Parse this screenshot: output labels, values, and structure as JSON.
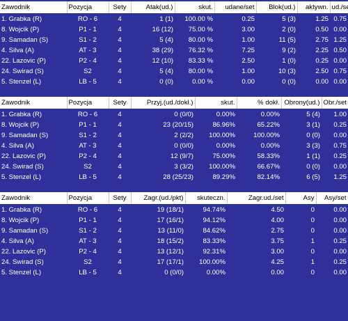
{
  "attack": {
    "headers": [
      "Zawodnik",
      "Pozycja",
      "Sety",
      "Atak(ud.)",
      "skut.",
      "udane/set",
      "Blok(ud.)",
      "aktywn.",
      "ud./set"
    ],
    "rows": [
      [
        "1. Grabka (R)",
        "RO - 6",
        "4",
        "1 (1)",
        "100.00 %",
        "0.25",
        "5 (3)",
        "1.25",
        "0.75"
      ],
      [
        "8. Wojcik (P)",
        "P1 - 1",
        "4",
        "16 (12)",
        "75.00 %",
        "3.00",
        "2 (0)",
        "0.50",
        "0.00"
      ],
      [
        "9. Samadan (S)",
        "S1 - 2",
        "4",
        "5 (4)",
        "80.00 %",
        "1.00",
        "11 (5)",
        "2.75",
        "1.25"
      ],
      [
        "4. Silva (A)",
        "AT - 3",
        "4",
        "38 (29)",
        "76.32 %",
        "7.25",
        "9 (2)",
        "2.25",
        "0.50"
      ],
      [
        "22. Lazovic (P)",
        "P2 - 4",
        "4",
        "12 (10)",
        "83.33 %",
        "2.50",
        "1 (0)",
        "0.25",
        "0.00"
      ],
      [
        "24. Swirad (S)",
        "S2",
        "4",
        "5 (4)",
        "80.00 %",
        "1.00",
        "10 (3)",
        "2.50",
        "0.75"
      ],
      [
        "5. Stenzel (L)",
        "LB - 5",
        "4",
        "0 (0)",
        "0.00 %",
        "0.00",
        "0 (0)",
        "0.00",
        "0.00"
      ]
    ]
  },
  "reception": {
    "headers": [
      "Zawodnik",
      "Pozycja",
      "Sety",
      "Przyj.(ud./dokł.)",
      "skut.",
      "% dokł.",
      "Obrony(ud.)",
      "Obr./set"
    ],
    "rows": [
      [
        "1. Grabka (R)",
        "RO - 6",
        "4",
        "0 (0/0)",
        "0.00%",
        "0.00%",
        "5 (4)",
        "1.00"
      ],
      [
        "8. Wojcik (P)",
        "P1 - 1",
        "4",
        "23 (20/15)",
        "86.96%",
        "65.22%",
        "3 (1)",
        "0.25"
      ],
      [
        "9. Samadan (S)",
        "S1 - 2",
        "4",
        "2 (2/2)",
        "100.00%",
        "100.00%",
        "0 (0)",
        "0.00"
      ],
      [
        "4. Silva (A)",
        "AT - 3",
        "4",
        "0 (0/0)",
        "0.00%",
        "0.00%",
        "3 (3)",
        "0.75"
      ],
      [
        "22. Lazovic (P)",
        "P2 - 4",
        "4",
        "12 (9/7)",
        "75.00%",
        "58.33%",
        "1 (1)",
        "0.25"
      ],
      [
        "24. Swirad (S)",
        "S2",
        "4",
        "3 (3/2)",
        "100.00%",
        "66.67%",
        "0 (0)",
        "0.00"
      ],
      [
        "5. Stenzel (L)",
        "LB - 5",
        "4",
        "28 (25/23)",
        "89.29%",
        "82.14%",
        "6 (5)",
        "1.25"
      ]
    ]
  },
  "serve": {
    "headers": [
      "Zawodnik",
      "Pozycja",
      "Sety",
      "Zagr.(ud./pkt)",
      "skuteczn.",
      "Zagr.ud./set",
      "Asy",
      "Asy/set"
    ],
    "rows": [
      [
        "1. Grabka (R)",
        "RO - 6",
        "4",
        "19 (18/1)",
        "94.74%",
        "4.50",
        "0",
        "0.00"
      ],
      [
        "8. Wojcik (P)",
        "P1 - 1",
        "4",
        "17 (16/1)",
        "94.12%",
        "4.00",
        "0",
        "0.00"
      ],
      [
        "9. Samadan (S)",
        "S1 - 2",
        "4",
        "13 (11/0)",
        "84.62%",
        "2.75",
        "0",
        "0.00"
      ],
      [
        "4. Silva (A)",
        "AT - 3",
        "4",
        "18 (15/2)",
        "83.33%",
        "3.75",
        "1",
        "0.25"
      ],
      [
        "22. Lazovic (P)",
        "P2 - 4",
        "4",
        "13 (12/1)",
        "92.31%",
        "3.00",
        "0",
        "0.00"
      ],
      [
        "24. Swirad (S)",
        "S2",
        "4",
        "17 (17/1)",
        "100.00%",
        "4.25",
        "1",
        "0.25"
      ],
      [
        "5. Stenzel (L)",
        "LB - 5",
        "4",
        "0 (0/0)",
        "0.00%",
        "0.00",
        "0",
        "0.00"
      ]
    ]
  }
}
